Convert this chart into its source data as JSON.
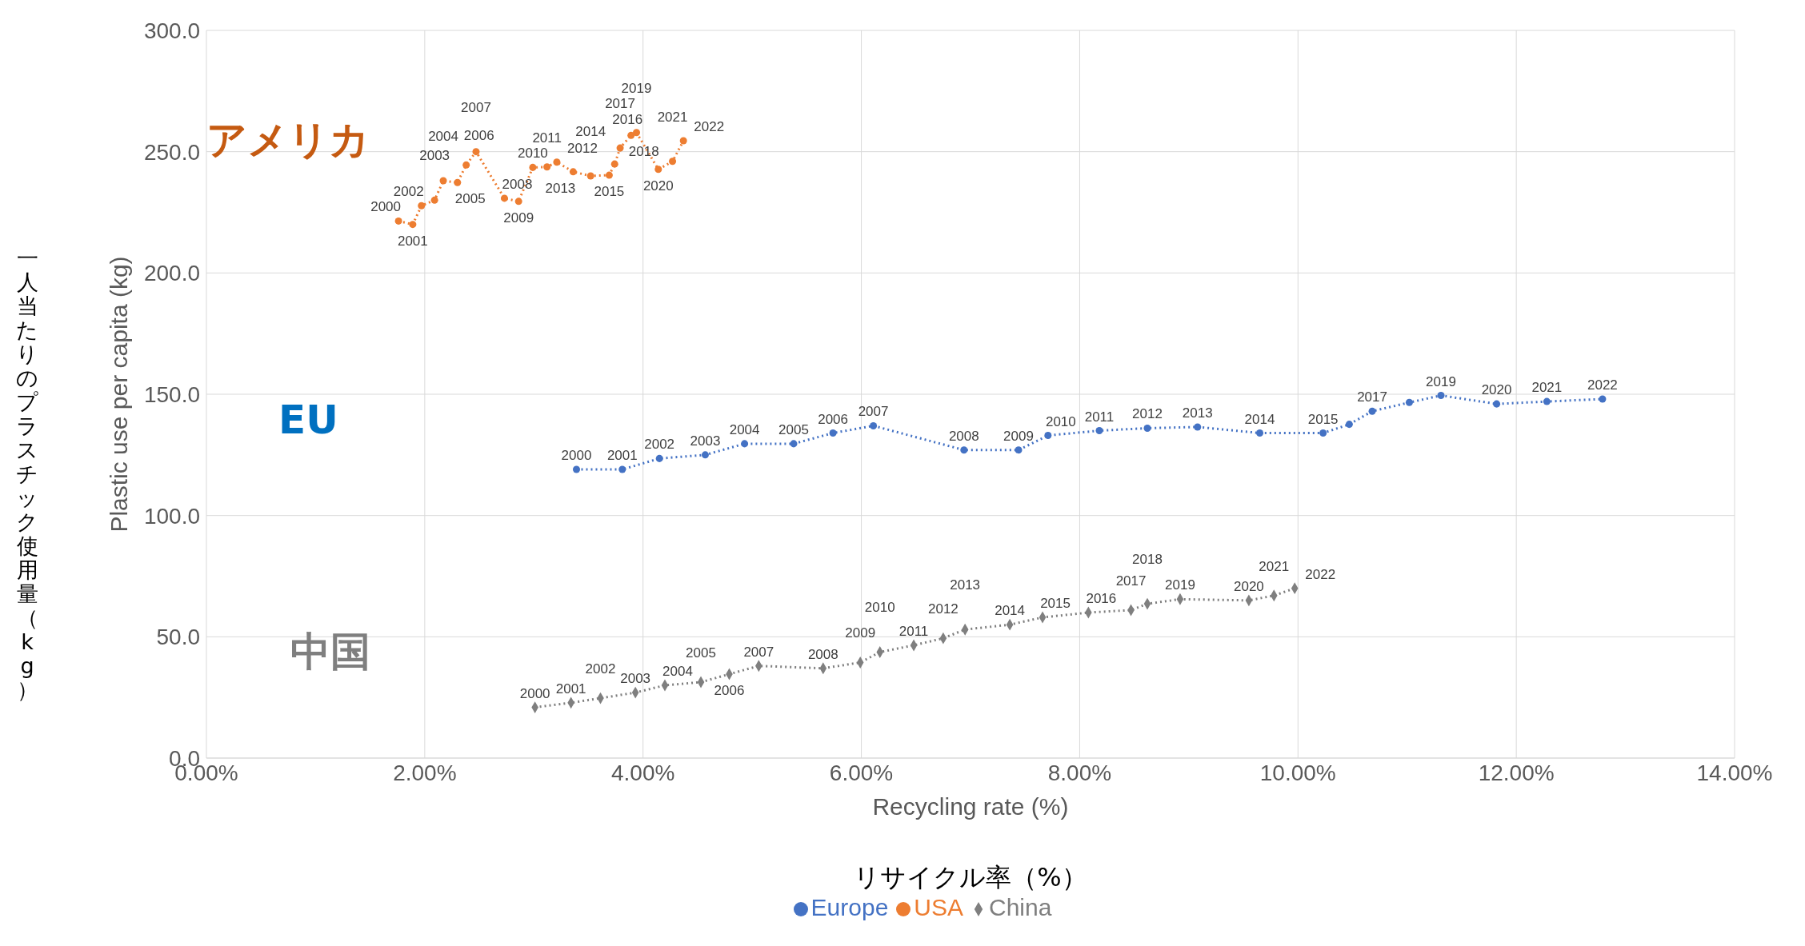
{
  "chart_data": {
    "type": "line",
    "xlabel": "Recycling rate (%)",
    "ylabel": "Plastic use per capita (kg)",
    "annotations": [
      "一人当たりのプラスチック使用量（kg）",
      "リサイクル率（%）",
      "アメリカ",
      "EU",
      "中国",
      {
        "text": "2000",
        "x": 3.39,
        "y": 119
      },
      {
        "text": "2001",
        "x": 3.81,
        "y": 119
      },
      {
        "text": "2002",
        "x": 4.15,
        "y": 123.5
      },
      {
        "text": "2003",
        "x": 4.57,
        "y": 125
      },
      {
        "text": "2004",
        "x": 4.93,
        "y": 129.6
      },
      {
        "text": "2005",
        "x": 5.38,
        "y": 129.6
      },
      {
        "text": "2006",
        "x": 5.74,
        "y": 134
      },
      {
        "text": "2007",
        "x": 6.11,
        "y": 137
      },
      {
        "text": "2008",
        "x": 6.94,
        "y": 127
      },
      {
        "text": "2009",
        "x": 7.44,
        "y": 127
      },
      {
        "text": "2010",
        "x": 7.71,
        "y": 133
      },
      {
        "text": "2011",
        "x": 8.18,
        "y": 135
      },
      {
        "text": "2012",
        "x": 8.62,
        "y": 136
      },
      {
        "text": "2013",
        "x": 9.08,
        "y": 136.5
      },
      {
        "text": "2014",
        "x": 9.65,
        "y": 134
      },
      {
        "text": "2015",
        "x": 10.23,
        "y": 134
      },
      {
        "text": "2017",
        "x": 10.68,
        "y": 143
      },
      {
        "text": "2019",
        "x": 11.31,
        "y": 149.5
      },
      {
        "text": "2020",
        "x": 11.82,
        "y": 146
      },
      {
        "text": "2021",
        "x": 12.28,
        "y": 147
      },
      {
        "text": "2022",
        "x": 12.79,
        "y": 148
      },
      {
        "text": "2000",
        "x": 1.76,
        "y": 221.4
      },
      {
        "text": "2001",
        "x": 1.89,
        "y": 220
      },
      {
        "text": "2002",
        "x": 1.97,
        "y": 227.7
      },
      {
        "text": "2003",
        "x": 2.09,
        "y": 230
      },
      {
        "text": "2004",
        "x": 2.17,
        "y": 238
      },
      {
        "text": "2005",
        "x": 2.3,
        "y": 237.3
      },
      {
        "text": "2006",
        "x": 2.38,
        "y": 244.5
      },
      {
        "text": "2007",
        "x": 2.47,
        "y": 250
      },
      {
        "text": "2008",
        "x": 2.73,
        "y": 230.8
      },
      {
        "text": "2009",
        "x": 2.86,
        "y": 229.5
      },
      {
        "text": "2010",
        "x": 2.99,
        "y": 243.5
      },
      {
        "text": "2011",
        "x": 3.12,
        "y": 243.7
      },
      {
        "text": "2012",
        "x": 3.21,
        "y": 245.7
      },
      {
        "text": "2013",
        "x": 3.36,
        "y": 241.7
      },
      {
        "text": "2014",
        "x": 3.52,
        "y": 240
      },
      {
        "text": "2015",
        "x": 3.69,
        "y": 240.3
      },
      {
        "text": "2016",
        "x": 3.74,
        "y": 244.9
      },
      {
        "text": "2017",
        "x": 3.79,
        "y": 251.5
      },
      {
        "text": "2018",
        "x": 3.89,
        "y": 256.7
      },
      {
        "text": "2019",
        "x": 3.94,
        "y": 257.9
      },
      {
        "text": "2020",
        "x": 4.14,
        "y": 242.7
      },
      {
        "text": "2021",
        "x": 4.27,
        "y": 246
      },
      {
        "text": "2022",
        "x": 4.37,
        "y": 254.5
      },
      {
        "text": "2000",
        "x": 3.01,
        "y": 20.9
      },
      {
        "text": "2001",
        "x": 3.34,
        "y": 22.8
      },
      {
        "text": "2002",
        "x": 3.61,
        "y": 24.7
      },
      {
        "text": "2003",
        "x": 3.93,
        "y": 27
      },
      {
        "text": "2004",
        "x": 4.2,
        "y": 30
      },
      {
        "text": "2005",
        "x": 4.53,
        "y": 31.3
      },
      {
        "text": "2006",
        "x": 4.79,
        "y": 34.6
      },
      {
        "text": "2007",
        "x": 5.06,
        "y": 38
      },
      {
        "text": "2008",
        "x": 5.65,
        "y": 37
      },
      {
        "text": "2009",
        "x": 5.99,
        "y": 39.4
      },
      {
        "text": "2010",
        "x": 6.17,
        "y": 43.7
      },
      {
        "text": "2011",
        "x": 6.48,
        "y": 46.5
      },
      {
        "text": "2012",
        "x": 6.75,
        "y": 49.4
      },
      {
        "text": "2013",
        "x": 6.95,
        "y": 53
      },
      {
        "text": "2014",
        "x": 7.36,
        "y": 55
      },
      {
        "text": "2015",
        "x": 7.66,
        "y": 58
      },
      {
        "text": "2016",
        "x": 8.08,
        "y": 60
      },
      {
        "text": "2017",
        "x": 8.47,
        "y": 61
      },
      {
        "text": "2018",
        "x": 8.62,
        "y": 63.6
      },
      {
        "text": "2019",
        "x": 8.92,
        "y": 65.5
      },
      {
        "text": "2020",
        "x": 9.55,
        "y": 65
      },
      {
        "text": "2021",
        "x": 9.78,
        "y": 67
      },
      {
        "text": "2022",
        "x": 9.97,
        "y": 70
      }
    ],
    "xlim": [
      0,
      14
    ],
    "xticks": [
      {
        "value": 0,
        "label": "0.00%"
      },
      {
        "value": 2,
        "label": "2.00%"
      },
      {
        "value": 4,
        "label": "4.00%"
      },
      {
        "value": 6,
        "label": "6.00%"
      },
      {
        "value": 8,
        "label": "8.00%"
      },
      {
        "value": 10,
        "label": "10.00%"
      },
      {
        "value": 12,
        "label": "12.00%"
      },
      {
        "value": 14,
        "label": "14.00%"
      }
    ],
    "ylim": [
      0,
      300
    ],
    "yticks": [
      {
        "value": 0,
        "label": "0.0"
      },
      {
        "value": 50,
        "label": "50.0"
      },
      {
        "value": 100,
        "label": "100.0"
      },
      {
        "value": 150,
        "label": "150.0"
      },
      {
        "value": 200,
        "label": "200.0"
      },
      {
        "value": 250,
        "label": "250.0"
      },
      {
        "value": 300,
        "label": "300.0"
      }
    ],
    "grid": true,
    "legend": "bottom",
    "line_style": "dotted",
    "series": [
      {
        "name": "Europe",
        "color": "#4472c4",
        "marker": "circle",
        "x": [
          3.39,
          3.81,
          4.15,
          4.57,
          4.93,
          5.38,
          5.74,
          6.11,
          6.94,
          7.44,
          7.71,
          8.18,
          8.62,
          9.08,
          9.65,
          10.23,
          10.47,
          10.68,
          11.02,
          11.31,
          11.82,
          12.28,
          12.79
        ],
        "values": [
          119,
          119,
          123.5,
          125,
          129.6,
          129.6,
          134,
          137,
          127,
          127,
          133,
          135,
          136,
          136.5,
          134,
          134,
          137.6,
          143,
          146.6,
          149.5,
          146,
          147,
          148
        ]
      },
      {
        "name": "USA",
        "color": "#ed7d31",
        "marker": "circle",
        "x": [
          1.76,
          1.89,
          1.97,
          2.09,
          2.17,
          2.3,
          2.38,
          2.47,
          2.73,
          2.86,
          2.99,
          3.12,
          3.21,
          3.36,
          3.52,
          3.69,
          3.74,
          3.79,
          3.89,
          3.94,
          4.14,
          4.27,
          4.37
        ],
        "values": [
          221.4,
          220,
          227.7,
          230,
          238,
          237.3,
          244.5,
          250,
          230.8,
          229.5,
          243.5,
          243.7,
          245.7,
          241.7,
          240,
          240.3,
          244.9,
          251.5,
          256.7,
          257.9,
          242.7,
          246,
          254.5
        ]
      },
      {
        "name": "China",
        "color": "#7f7f7f",
        "marker": "diamond",
        "x": [
          3.01,
          3.34,
          3.61,
          3.93,
          4.2,
          4.53,
          4.79,
          5.06,
          5.65,
          5.99,
          6.17,
          6.48,
          6.75,
          6.95,
          7.36,
          7.66,
          8.08,
          8.47,
          8.62,
          8.92,
          9.55,
          9.78,
          9.97
        ],
        "values": [
          20.9,
          22.8,
          24.7,
          27,
          30,
          31.3,
          34.6,
          38,
          37,
          39.4,
          43.7,
          46.5,
          49.4,
          53,
          55,
          58,
          60,
          61,
          63.6,
          65.5,
          65,
          67,
          70
        ]
      }
    ]
  }
}
